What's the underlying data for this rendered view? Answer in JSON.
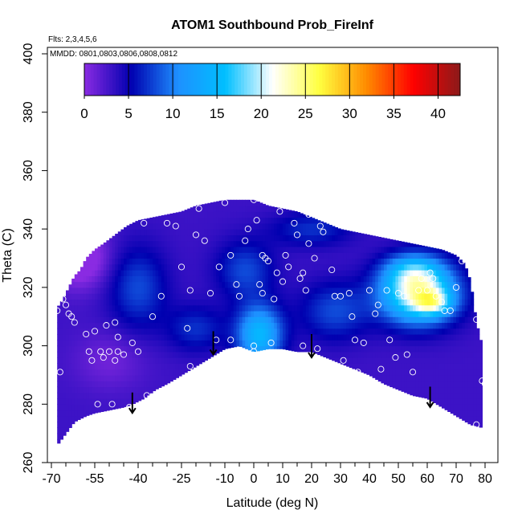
{
  "chart_data": {
    "type": "heatmap",
    "title": "ATOM1 Southbound Prob_FireInf",
    "flights_note": "Flts: 2,3,4,5,6",
    "dates_note": "MMDD: 0801,0803,0806,0808,0812",
    "xlabel": "Latitude (deg N)",
    "ylabel": "Theta (C)",
    "xlim": [
      -70,
      80
    ],
    "ylim": [
      260,
      400
    ],
    "x_ticks": [
      "-70",
      "-55",
      "-40",
      "-25",
      "-10",
      "0",
      "10",
      "20",
      "30",
      "40",
      "50",
      "60",
      "70",
      "80"
    ],
    "x_tick_values": [
      -70,
      -55,
      -40,
      -25,
      -10,
      0,
      10,
      20,
      30,
      40,
      50,
      60,
      70,
      80
    ],
    "y_ticks": [
      "260",
      "280",
      "300",
      "320",
      "340",
      "360",
      "380",
      "400"
    ],
    "y_tick_values": [
      260,
      280,
      300,
      320,
      340,
      360,
      380,
      400
    ],
    "colorbar": {
      "min": 0,
      "max": 42.5,
      "ticks": [
        "0",
        "5",
        "10",
        "15",
        "20",
        "25",
        "30",
        "35",
        "40"
      ],
      "tick_values": [
        0,
        5,
        10,
        15,
        20,
        25,
        30,
        35,
        40
      ],
      "colors": [
        "#8a2be2",
        "#0000b0",
        "#1e90ff",
        "#00bfff",
        "#ffffff",
        "#ffff40",
        "#ff8c00",
        "#ff0000",
        "#8b1a1a"
      ]
    },
    "field": {
      "top_boundary": [
        [
          -68,
          313
        ],
        [
          -66,
          316
        ],
        [
          -64,
          320
        ],
        [
          -62,
          324
        ],
        [
          -60,
          326
        ],
        [
          -58,
          330
        ],
        [
          -55,
          333
        ],
        [
          -52,
          335
        ],
        [
          -48,
          338
        ],
        [
          -44,
          341
        ],
        [
          -40,
          343
        ],
        [
          -35,
          344
        ],
        [
          -30,
          345
        ],
        [
          -25,
          346
        ],
        [
          -20,
          348
        ],
        [
          -15,
          349
        ],
        [
          -10,
          350
        ],
        [
          -5,
          350
        ],
        [
          0,
          350
        ],
        [
          5,
          348
        ],
        [
          10,
          347
        ],
        [
          15,
          346
        ],
        [
          20,
          344
        ],
        [
          25,
          342
        ],
        [
          30,
          340
        ],
        [
          35,
          339
        ],
        [
          40,
          338
        ],
        [
          45,
          337
        ],
        [
          50,
          336
        ],
        [
          55,
          335
        ],
        [
          60,
          334
        ],
        [
          65,
          333
        ],
        [
          70,
          331
        ],
        [
          73,
          328
        ],
        [
          75,
          322
        ],
        [
          76,
          315
        ],
        [
          77,
          308
        ],
        [
          78,
          304
        ],
        [
          79,
          300
        ]
      ],
      "bottom_boundary": [
        [
          -68,
          266
        ],
        [
          -65,
          270
        ],
        [
          -62,
          274
        ],
        [
          -58,
          276
        ],
        [
          -55,
          277
        ],
        [
          -50,
          278
        ],
        [
          -45,
          279
        ],
        [
          -42,
          280
        ],
        [
          -38,
          282
        ],
        [
          -34,
          285
        ],
        [
          -30,
          287
        ],
        [
          -25,
          290
        ],
        [
          -20,
          293
        ],
        [
          -15,
          296
        ],
        [
          -10,
          299
        ],
        [
          -5,
          300
        ],
        [
          0,
          298
        ],
        [
          5,
          299
        ],
        [
          10,
          299
        ],
        [
          15,
          298
        ],
        [
          20,
          298
        ],
        [
          25,
          296
        ],
        [
          30,
          294
        ],
        [
          35,
          292
        ],
        [
          40,
          290
        ],
        [
          45,
          287
        ],
        [
          50,
          285
        ],
        [
          55,
          283
        ],
        [
          60,
          282
        ],
        [
          65,
          279
        ],
        [
          70,
          276
        ],
        [
          75,
          273
        ],
        [
          79,
          272
        ]
      ],
      "value_blobs": [
        {
          "lat": 57,
          "theta": 318,
          "value": 19,
          "spread_lat": 13,
          "spread_theta": 10
        },
        {
          "lat": 62,
          "theta": 315,
          "value": 8,
          "spread_lat": 6,
          "spread_theta": 4
        },
        {
          "lat": 55,
          "theta": 326,
          "value": 7,
          "spread_lat": 10,
          "spread_theta": 6
        },
        {
          "lat": 2,
          "theta": 304,
          "value": 12,
          "spread_lat": 8,
          "spread_theta": 10
        },
        {
          "lat": -3,
          "theta": 326,
          "value": 5,
          "spread_lat": 10,
          "spread_theta": 10
        },
        {
          "lat": -20,
          "theta": 306,
          "value": 4,
          "spread_lat": 10,
          "spread_theta": 8
        },
        {
          "lat": 28,
          "theta": 312,
          "value": 5,
          "spread_lat": 12,
          "spread_theta": 10
        },
        {
          "lat": -40,
          "theta": 320,
          "value": 5,
          "spread_lat": 10,
          "spread_theta": 14
        },
        {
          "lat": -60,
          "theta": 330,
          "value": -5,
          "spread_lat": 10,
          "spread_theta": 10
        },
        {
          "lat": -50,
          "theta": 295,
          "value": -2,
          "spread_lat": 12,
          "spread_theta": 10
        },
        {
          "lat": 20,
          "theta": 340,
          "value": 4,
          "spread_lat": 14,
          "spread_theta": 6
        }
      ],
      "base_value": 3
    },
    "observation_points": [
      [
        -68,
        312
      ],
      [
        -67,
        291
      ],
      [
        -66,
        316
      ],
      [
        -65,
        314
      ],
      [
        -64,
        311
      ],
      [
        -63,
        310
      ],
      [
        -62,
        308
      ],
      [
        -58,
        304
      ],
      [
        -57,
        298
      ],
      [
        -56,
        295
      ],
      [
        -55,
        305
      ],
      [
        -53,
        298
      ],
      [
        -52,
        296
      ],
      [
        -51,
        307
      ],
      [
        -50,
        298
      ],
      [
        -48,
        308
      ],
      [
        -48,
        295
      ],
      [
        -47,
        303
      ],
      [
        -47,
        298
      ],
      [
        -45,
        297
      ],
      [
        -42,
        301
      ],
      [
        -40,
        298
      ],
      [
        -38,
        342
      ],
      [
        -35,
        310
      ],
      [
        -32,
        317
      ],
      [
        -30,
        342
      ],
      [
        -27,
        341
      ],
      [
        -25,
        327
      ],
      [
        -23,
        306
      ],
      [
        -22,
        319
      ],
      [
        -20,
        338
      ],
      [
        -19,
        347
      ],
      [
        -17,
        336
      ],
      [
        -15,
        318
      ],
      [
        -13,
        302
      ],
      [
        -12,
        327
      ],
      [
        -10,
        349
      ],
      [
        -8,
        331
      ],
      [
        -8,
        302
      ],
      [
        -6,
        321
      ],
      [
        -5,
        317
      ],
      [
        -3,
        336
      ],
      [
        -2,
        340
      ],
      [
        0,
        350
      ],
      [
        1,
        343
      ],
      [
        2,
        321
      ],
      [
        3,
        318
      ],
      [
        3,
        331
      ],
      [
        4,
        330
      ],
      [
        5,
        329
      ],
      [
        6,
        301
      ],
      [
        7,
        316
      ],
      [
        8,
        325
      ],
      [
        9,
        346
      ],
      [
        10,
        322
      ],
      [
        11,
        331
      ],
      [
        12,
        327
      ],
      [
        14,
        342
      ],
      [
        15,
        338
      ],
      [
        16,
        323
      ],
      [
        17,
        325
      ],
      [
        17,
        300
      ],
      [
        18,
        319
      ],
      [
        19,
        345
      ],
      [
        19,
        335
      ],
      [
        21,
        330
      ],
      [
        22,
        299
      ],
      [
        23,
        341
      ],
      [
        24,
        339
      ],
      [
        25,
        344
      ],
      [
        27,
        326
      ],
      [
        28,
        317
      ],
      [
        30,
        317
      ],
      [
        31,
        295
      ],
      [
        33,
        318
      ],
      [
        34,
        310
      ],
      [
        35,
        302
      ],
      [
        36,
        291
      ],
      [
        38,
        301
      ],
      [
        40,
        319
      ],
      [
        42,
        311
      ],
      [
        43,
        314
      ],
      [
        44,
        292
      ],
      [
        46,
        319
      ],
      [
        47,
        302
      ],
      [
        50,
        318
      ],
      [
        52,
        317
      ],
      [
        55,
        291
      ],
      [
        57,
        319
      ],
      [
        58,
        323
      ],
      [
        60,
        319
      ],
      [
        61,
        325
      ],
      [
        62,
        323
      ],
      [
        63,
        317
      ],
      [
        65,
        315
      ],
      [
        66,
        312
      ],
      [
        68,
        312
      ],
      [
        70,
        320
      ],
      [
        72,
        329
      ],
      [
        74,
        335
      ],
      [
        77,
        309
      ],
      [
        79,
        288
      ],
      [
        80,
        287
      ],
      [
        -54,
        280
      ],
      [
        -49,
        280
      ],
      [
        -43,
        279
      ],
      [
        -37,
        283
      ],
      [
        -22,
        293
      ],
      [
        0,
        300
      ],
      [
        0,
        298
      ],
      [
        49,
        296
      ],
      [
        53,
        297
      ],
      [
        77,
        273
      ]
    ],
    "arrows": [
      {
        "lat": -42,
        "theta_from": 284,
        "theta_to": 277
      },
      {
        "lat": -14,
        "theta_from": 305,
        "theta_to": 297
      },
      {
        "lat": 20,
        "theta_from": 304,
        "theta_to": 296
      },
      {
        "lat": 61,
        "theta_from": 286,
        "theta_to": 279
      }
    ],
    "grid": false,
    "legend": "colorbar-top"
  }
}
